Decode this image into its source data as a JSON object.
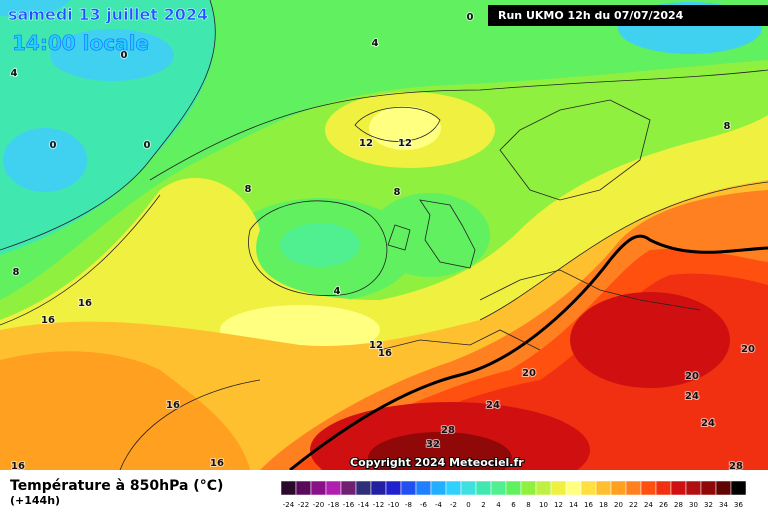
{
  "header": {
    "title": "samedi 13 juillet 2024",
    "subtitle": "14:00 locale",
    "run": "Run UKMO 12h du 07/07/2024"
  },
  "copyright": "Copyright 2024 Meteociel.fr",
  "legend": {
    "title": "Température à 850hPa (°C)",
    "lead_time": "(+144h)",
    "values": [
      -24,
      -22,
      -20,
      -18,
      -16,
      -14,
      -12,
      -10,
      -8,
      -6,
      -4,
      -2,
      0,
      2,
      4,
      6,
      8,
      10,
      12,
      14,
      16,
      18,
      20,
      22,
      24,
      26,
      28,
      30,
      32,
      34,
      36
    ],
    "colors": [
      "#2a0a2a",
      "#5a0a5a",
      "#8a108a",
      "#b020b0",
      "#702070",
      "#30307a",
      "#2020a0",
      "#2020d0",
      "#2050f0",
      "#2080ff",
      "#20b0ff",
      "#30d0ff",
      "#40e0e0",
      "#40e8b0",
      "#50f090",
      "#60f060",
      "#90f040",
      "#c0f040",
      "#f0f040",
      "#ffff80",
      "#ffe040",
      "#ffc030",
      "#ffa020",
      "#ff8020",
      "#ff5010",
      "#f03010",
      "#d01010",
      "#b01010",
      "#900808",
      "#600404",
      "#000000"
    ]
  },
  "contour_labels": [
    0,
    4,
    4,
    0,
    0,
    0,
    12,
    12,
    8,
    8,
    8,
    8,
    4,
    16,
    16,
    12,
    16,
    20,
    20,
    20,
    24,
    24,
    24,
    28,
    32,
    16,
    16,
    16,
    28
  ]
}
